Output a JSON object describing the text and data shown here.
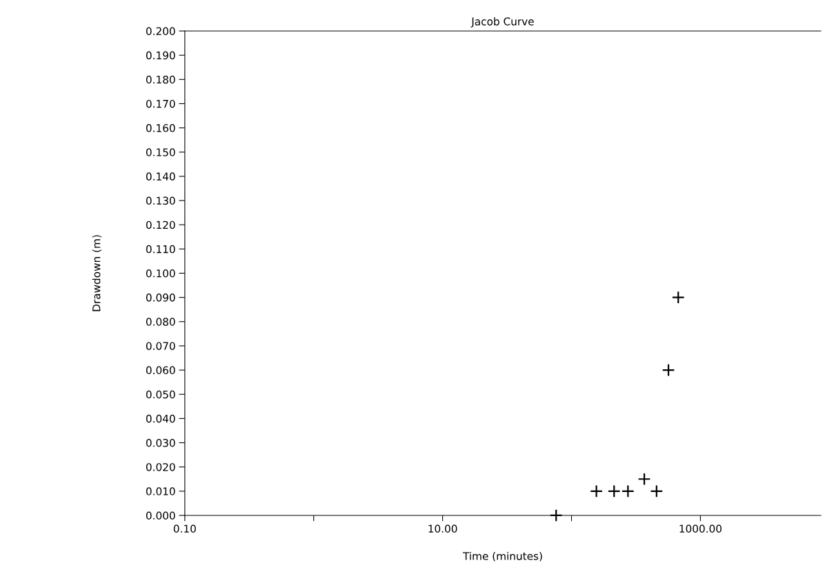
{
  "chart_data": {
    "type": "scatter",
    "title": "Jacob Curve",
    "xlabel": "Time (minutes)",
    "ylabel": "Drawdown (m)",
    "x": [
      76,
      156,
      214,
      274,
      367,
      457,
      565,
      673
    ],
    "values": [
      0.0,
      0.01,
      0.01,
      0.01,
      0.015,
      0.01,
      0.06,
      0.09
    ],
    "color": "#000000",
    "marker": "cross",
    "log": "x",
    "xlim": [
      0.1,
      8600
    ],
    "xticks": [
      {
        "value": 0.1,
        "label": "0.10"
      },
      {
        "value": 1,
        "label": null
      },
      {
        "value": 10,
        "label": "10.00"
      },
      {
        "value": 100,
        "label": null
      },
      {
        "value": 1000,
        "label": "1000.00"
      }
    ],
    "ylim": [
      0,
      0.2
    ],
    "yticks": [
      {
        "value": 0.0,
        "label": "0.000"
      },
      {
        "value": 0.01,
        "label": "0.010"
      },
      {
        "value": 0.02,
        "label": "0.020"
      },
      {
        "value": 0.03,
        "label": "0.030"
      },
      {
        "value": 0.04,
        "label": "0.040"
      },
      {
        "value": 0.05,
        "label": "0.050"
      },
      {
        "value": 0.06,
        "label": "0.060"
      },
      {
        "value": 0.07,
        "label": "0.070"
      },
      {
        "value": 0.08,
        "label": "0.080"
      },
      {
        "value": 0.09,
        "label": "0.090"
      },
      {
        "value": 0.1,
        "label": "0.100"
      },
      {
        "value": 0.11,
        "label": "0.110"
      },
      {
        "value": 0.12,
        "label": "0.120"
      },
      {
        "value": 0.13,
        "label": "0.130"
      },
      {
        "value": 0.14,
        "label": "0.140"
      },
      {
        "value": 0.15,
        "label": "0.150"
      },
      {
        "value": 0.16,
        "label": "0.160"
      },
      {
        "value": 0.17,
        "label": "0.170"
      },
      {
        "value": 0.18,
        "label": "0.180"
      },
      {
        "value": 0.19,
        "label": "0.190"
      },
      {
        "value": 0.2,
        "label": "0.200"
      }
    ],
    "grid": false,
    "legend": false
  }
}
